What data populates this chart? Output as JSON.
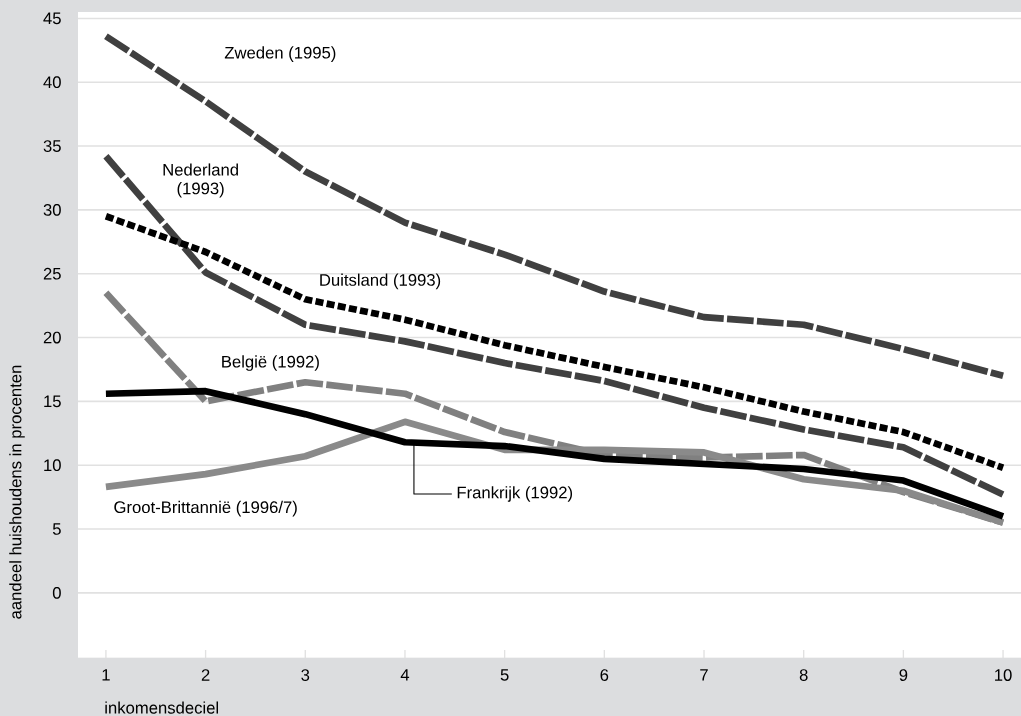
{
  "chart_data": {
    "type": "line",
    "xlabel": "inkomensdeciel",
    "ylabel": "aandeel huishoudens in procenten",
    "x": [
      1,
      2,
      3,
      4,
      5,
      6,
      7,
      8,
      9,
      10
    ],
    "xlim": [
      0.72,
      10.18
    ],
    "ylim": [
      -5.1,
      45.5
    ],
    "xticks": [
      1,
      2,
      3,
      4,
      5,
      6,
      7,
      8,
      9,
      10
    ],
    "yticks": [
      0,
      5,
      10,
      15,
      20,
      25,
      30,
      35,
      40,
      45
    ],
    "grid": "y",
    "series": [
      {
        "name": "Zweden (1995)",
        "color": "#404040",
        "line_style": "dashed",
        "values": [
          43.6,
          38.5,
          33,
          29,
          26.5,
          23.6,
          21.6,
          21,
          19.1,
          17
        ]
      },
      {
        "name": "Nederland (1993)",
        "color": "#404040",
        "line_style": "dashed",
        "values": [
          34.2,
          25.1,
          21,
          19.7,
          18,
          16.6,
          14.5,
          12.8,
          11.4,
          7.7
        ]
      },
      {
        "name": "Duitsland (1993)",
        "color": "#000000",
        "line_style": "dotted",
        "values": [
          29.5,
          26.7,
          23,
          21.4,
          19.4,
          17.7,
          16.1,
          14.2,
          12.6,
          9.8
        ]
      },
      {
        "name": "België (1992)",
        "color": "#808080",
        "line_style": "dashed",
        "values": [
          23.5,
          15,
          16.5,
          15.6,
          12.6,
          10.8,
          10.6,
          10.8,
          7.9,
          5.5
        ]
      },
      {
        "name": "Groot-Brittannië (1996/7)",
        "color": "#8a8a8a",
        "line_style": "solid",
        "values": [
          8.3,
          9.3,
          10.7,
          13.4,
          11.2,
          11.2,
          11.0,
          8.9,
          8.0,
          5.5
        ]
      },
      {
        "name": "Frankrijk (1992)",
        "color": "#000000",
        "line_style": "solid",
        "values": [
          15.6,
          15.8,
          14,
          11.8,
          11.5,
          10.5,
          10.1,
          9.7,
          8.8,
          6
        ]
      }
    ]
  }
}
